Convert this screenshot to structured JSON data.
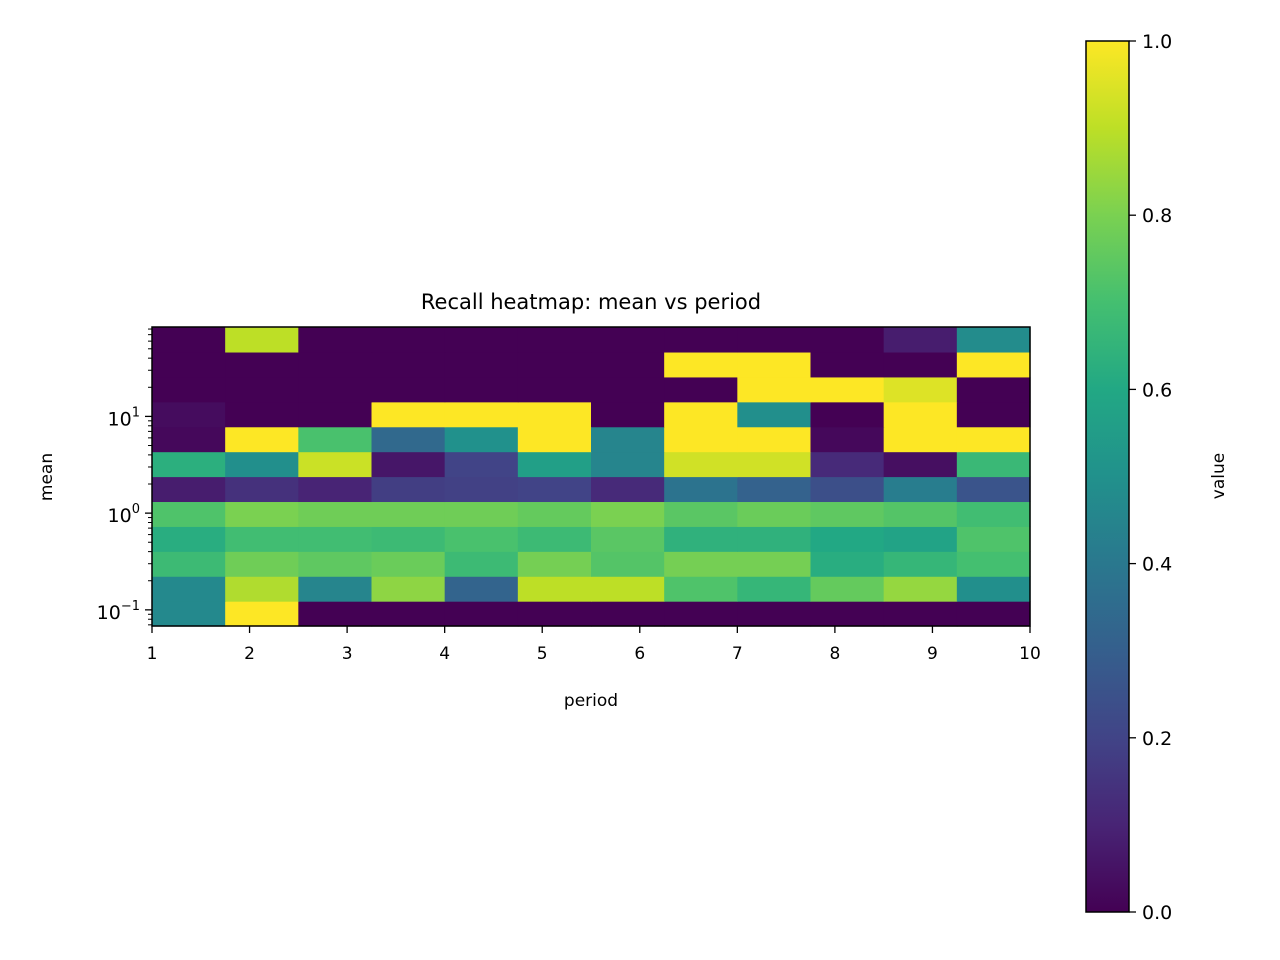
{
  "chart_data": {
    "type": "heatmap",
    "title": "Recall heatmap: mean vs period",
    "xlabel": "period",
    "ylabel": "mean",
    "colorbar_label": "value",
    "colormap": "viridis",
    "x_scale": "linear",
    "y_scale": "log",
    "xlim": [
      1,
      10
    ],
    "ylim": [
      0.0681,
      84
    ],
    "x_ticks": [
      1,
      2,
      3,
      4,
      5,
      6,
      7,
      8,
      9,
      10
    ],
    "x_tick_labels": [
      "1",
      "2",
      "3",
      "4",
      "5",
      "6",
      "7",
      "8",
      "9",
      "10"
    ],
    "y_ticks": [
      0.1,
      1,
      10
    ],
    "y_tick_labels": [
      {
        "base": "10",
        "exp": "−1"
      },
      {
        "base": "10",
        "exp": "0"
      },
      {
        "base": "10",
        "exp": "1"
      }
    ],
    "colorbar_range": [
      0,
      1
    ],
    "colorbar_ticks": [
      0.0,
      0.2,
      0.4,
      0.6,
      0.8,
      1.0
    ],
    "colorbar_tick_labels": [
      "0.0",
      "0.2",
      "0.4",
      "0.6",
      "0.8",
      "1.0"
    ],
    "grid": false,
    "legend": "none",
    "rows_order": "bottom-to-top",
    "rows": [
      [
        0.47,
        1.0,
        0.0,
        0.0,
        0.0,
        0.0,
        0.0,
        0.0,
        0.0,
        0.0,
        0.0,
        0.0
      ],
      [
        0.47,
        0.88,
        0.45,
        0.83,
        0.32,
        0.9,
        0.9,
        0.72,
        0.66,
        0.76,
        0.84,
        0.49
      ],
      [
        0.68,
        0.78,
        0.75,
        0.77,
        0.68,
        0.79,
        0.73,
        0.79,
        0.79,
        0.62,
        0.66,
        0.7
      ],
      [
        0.62,
        0.69,
        0.69,
        0.68,
        0.71,
        0.68,
        0.74,
        0.64,
        0.64,
        0.6,
        0.58,
        0.72
      ],
      [
        0.72,
        0.8,
        0.78,
        0.78,
        0.78,
        0.76,
        0.8,
        0.74,
        0.77,
        0.75,
        0.73,
        0.69
      ],
      [
        0.08,
        0.14,
        0.1,
        0.18,
        0.19,
        0.2,
        0.12,
        0.38,
        0.31,
        0.24,
        0.42,
        0.26
      ],
      [
        0.63,
        0.49,
        0.92,
        0.06,
        0.2,
        0.56,
        0.45,
        0.93,
        0.93,
        0.12,
        0.04,
        0.67
      ],
      [
        0.02,
        1.0,
        0.71,
        0.34,
        0.5,
        1.0,
        0.45,
        1.0,
        1.0,
        0.02,
        1.0,
        1.0
      ],
      [
        0.03,
        0.0,
        0.0,
        1.0,
        1.0,
        1.0,
        0.0,
        1.0,
        0.49,
        0.0,
        1.0,
        0.0
      ],
      [
        0.0,
        0.0,
        0.0,
        0.0,
        0.0,
        0.0,
        0.0,
        0.0,
        1.0,
        1.0,
        0.95,
        0.0
      ],
      [
        0.0,
        0.0,
        0.0,
        0.0,
        0.0,
        0.0,
        0.0,
        1.0,
        1.0,
        0.0,
        0.0,
        1.0
      ],
      [
        0.0,
        0.9,
        0.0,
        0.0,
        0.0,
        0.0,
        0.0,
        0.0,
        0.0,
        0.0,
        0.08,
        0.48
      ]
    ]
  }
}
